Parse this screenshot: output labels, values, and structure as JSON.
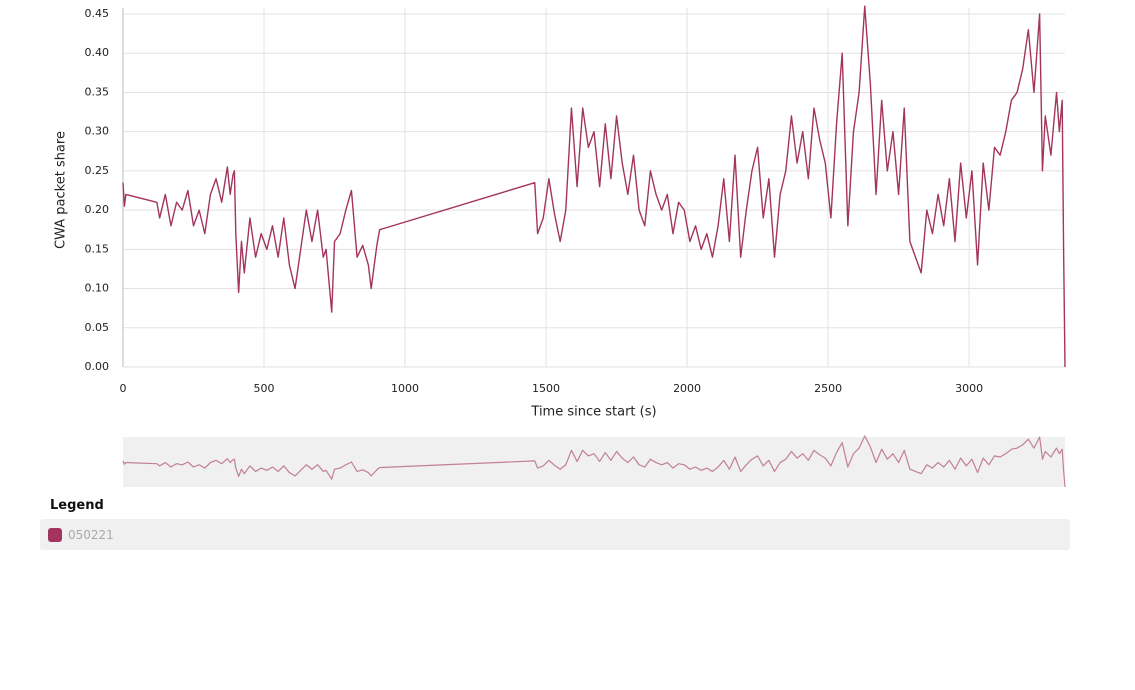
{
  "chart_data": {
    "type": "line",
    "x_label": "Time since start (s)",
    "y_label": "CWA packet share",
    "legend_title": "Legend",
    "x": [
      0,
      5,
      10,
      120,
      130,
      150,
      170,
      190,
      210,
      230,
      250,
      270,
      290,
      310,
      330,
      350,
      370,
      380,
      390,
      395,
      400,
      410,
      420,
      430,
      450,
      470,
      490,
      510,
      530,
      550,
      570,
      590,
      610,
      630,
      650,
      670,
      690,
      710,
      720,
      740,
      750,
      770,
      790,
      810,
      830,
      850,
      870,
      880,
      900,
      910,
      1460,
      1470,
      1490,
      1510,
      1530,
      1550,
      1570,
      1590,
      1610,
      1630,
      1650,
      1670,
      1690,
      1710,
      1730,
      1750,
      1770,
      1790,
      1810,
      1830,
      1850,
      1870,
      1890,
      1910,
      1930,
      1950,
      1970,
      1990,
      2010,
      2030,
      2050,
      2070,
      2090,
      2110,
      2130,
      2150,
      2170,
      2190,
      2210,
      2230,
      2250,
      2270,
      2290,
      2310,
      2330,
      2350,
      2370,
      2390,
      2410,
      2430,
      2450,
      2470,
      2490,
      2510,
      2530,
      2550,
      2570,
      2590,
      2610,
      2630,
      2650,
      2670,
      2690,
      2710,
      2730,
      2750,
      2770,
      2790,
      2810,
      2830,
      2850,
      2870,
      2890,
      2910,
      2930,
      2950,
      2970,
      2990,
      3010,
      3030,
      3050,
      3070,
      3090,
      3110,
      3130,
      3150,
      3170,
      3190,
      3210,
      3230,
      3250,
      3260,
      3270,
      3290,
      3310,
      3320,
      3330,
      3335,
      3340
    ],
    "series": [
      {
        "name": "050221",
        "color": "#a3345e",
        "values": [
          0.235,
          0.205,
          0.22,
          0.21,
          0.19,
          0.22,
          0.18,
          0.21,
          0.2,
          0.225,
          0.18,
          0.2,
          0.17,
          0.22,
          0.24,
          0.21,
          0.255,
          0.22,
          0.245,
          0.25,
          0.17,
          0.095,
          0.16,
          0.12,
          0.19,
          0.14,
          0.17,
          0.15,
          0.18,
          0.14,
          0.19,
          0.13,
          0.1,
          0.15,
          0.2,
          0.16,
          0.2,
          0.14,
          0.15,
          0.07,
          0.16,
          0.17,
          0.2,
          0.225,
          0.14,
          0.155,
          0.13,
          0.1,
          0.155,
          0.175,
          0.235,
          0.17,
          0.19,
          0.24,
          0.195,
          0.16,
          0.2,
          0.33,
          0.23,
          0.33,
          0.28,
          0.3,
          0.23,
          0.31,
          0.24,
          0.32,
          0.26,
          0.22,
          0.27,
          0.2,
          0.18,
          0.25,
          0.22,
          0.2,
          0.22,
          0.17,
          0.21,
          0.2,
          0.16,
          0.18,
          0.15,
          0.17,
          0.14,
          0.18,
          0.24,
          0.16,
          0.27,
          0.14,
          0.2,
          0.25,
          0.28,
          0.19,
          0.24,
          0.14,
          0.22,
          0.25,
          0.32,
          0.26,
          0.3,
          0.24,
          0.33,
          0.29,
          0.26,
          0.19,
          0.31,
          0.4,
          0.18,
          0.3,
          0.35,
          0.46,
          0.36,
          0.22,
          0.34,
          0.25,
          0.3,
          0.22,
          0.33,
          0.16,
          0.14,
          0.12,
          0.2,
          0.17,
          0.22,
          0.18,
          0.24,
          0.16,
          0.26,
          0.19,
          0.25,
          0.13,
          0.26,
          0.2,
          0.28,
          0.27,
          0.3,
          0.34,
          0.35,
          0.38,
          0.43,
          0.35,
          0.45,
          0.25,
          0.32,
          0.27,
          0.35,
          0.3,
          0.34,
          0.15,
          0.0
        ]
      }
    ],
    "xlim": [
      0,
      3340
    ],
    "ylim": [
      0,
      0.45
    ],
    "xticks": [
      0,
      500,
      1000,
      1500,
      2000,
      2500,
      3000
    ],
    "yticks": [
      {
        "value": 0,
        "label": "0.00"
      },
      0.05,
      {
        "value": 0.1,
        "label": "0.10"
      },
      0.15,
      {
        "value": 0.2,
        "label": "0.20"
      },
      0.25,
      {
        "value": 0.3,
        "label": "0.30"
      },
      0.35,
      {
        "value": 0.4,
        "label": "0.40"
      },
      0.45
    ],
    "grid": true
  }
}
